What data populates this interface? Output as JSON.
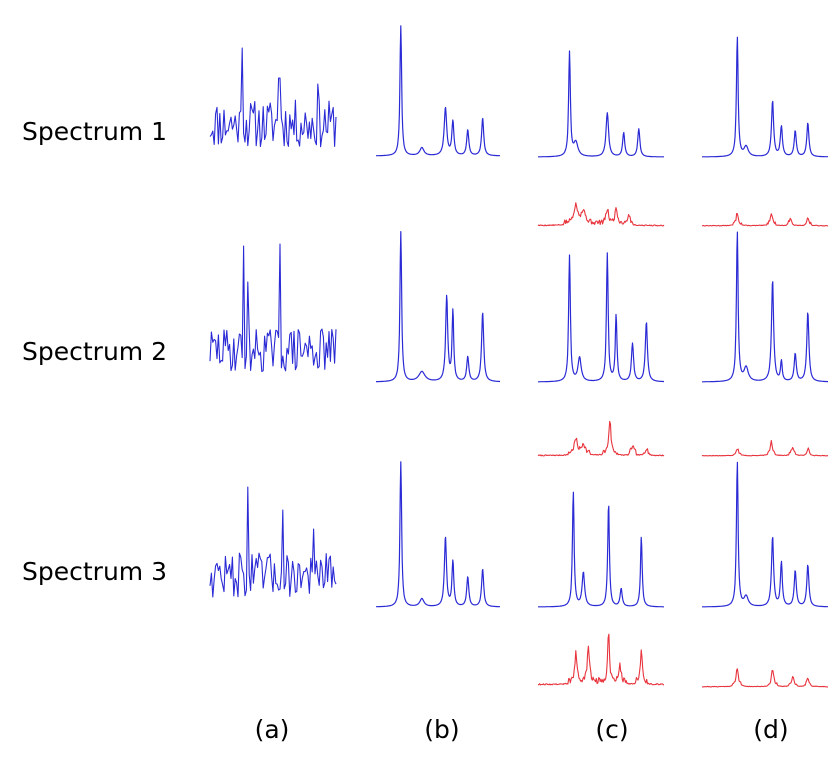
{
  "row_labels": [
    "Spectrum 1",
    "Spectrum 2",
    "Spectrum 3"
  ],
  "column_labels": [
    "(a)",
    "(b)",
    "(c)",
    "(d)"
  ],
  "colors": {
    "spectrum": "#2b2bd6",
    "residual": "#e8343d",
    "background": "#ffffff"
  }
}
